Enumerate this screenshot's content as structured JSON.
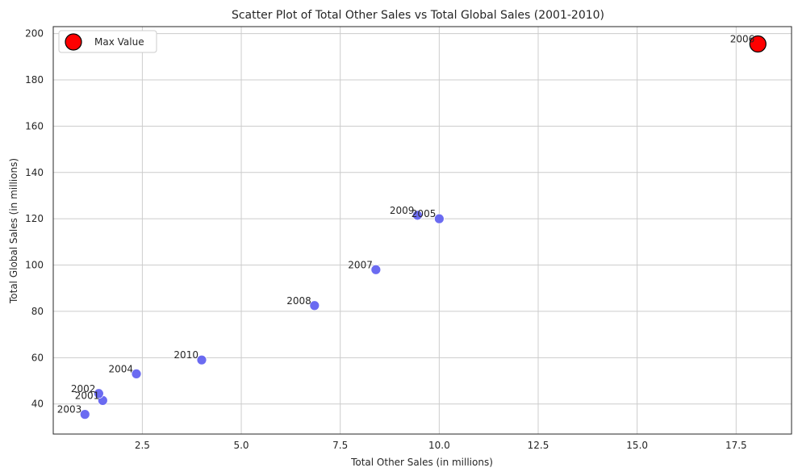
{
  "chart_data": {
    "type": "scatter",
    "title": "Scatter Plot of Total Other Sales vs Total Global Sales (2001-2010)",
    "xlabel": "Total Other Sales (in millions)",
    "ylabel": "Total Global Sales (in millions)",
    "xlim": [
      0.25,
      18.9
    ],
    "ylim": [
      27,
      203
    ],
    "x_ticks": [
      2.5,
      5.0,
      7.5,
      10.0,
      12.5,
      15.0,
      17.5
    ],
    "x_tick_labels": [
      "2.5",
      "5.0",
      "7.5",
      "10.0",
      "12.5",
      "15.0",
      "17.5"
    ],
    "y_ticks": [
      40,
      60,
      80,
      100,
      120,
      140,
      160,
      180,
      200
    ],
    "y_tick_labels": [
      "40",
      "60",
      "80",
      "100",
      "120",
      "140",
      "160",
      "180",
      "200"
    ],
    "grid": true,
    "points": [
      {
        "label": "2001",
        "x": 1.5,
        "y": 41.5
      },
      {
        "label": "2002",
        "x": 1.4,
        "y": 44.5
      },
      {
        "label": "2003",
        "x": 1.05,
        "y": 35.5
      },
      {
        "label": "2004",
        "x": 2.35,
        "y": 53
      },
      {
        "label": "2005",
        "x": 10.0,
        "y": 120
      },
      {
        "label": "2006",
        "x": 18.05,
        "y": 195.5
      },
      {
        "label": "2007",
        "x": 8.4,
        "y": 98
      },
      {
        "label": "2008",
        "x": 6.85,
        "y": 82.5
      },
      {
        "label": "2009",
        "x": 9.45,
        "y": 121.5
      },
      {
        "label": "2010",
        "x": 4.0,
        "y": 59
      }
    ],
    "max_point": {
      "label": "Max Value",
      "x": 18.05,
      "y": 195.5
    },
    "legend": {
      "position": "top-left",
      "entries": [
        "Max Value"
      ]
    },
    "colors": {
      "points": "#5b5bf0",
      "max": "#ff0000",
      "max_edge": "#000000",
      "grid": "#cccccc"
    }
  }
}
